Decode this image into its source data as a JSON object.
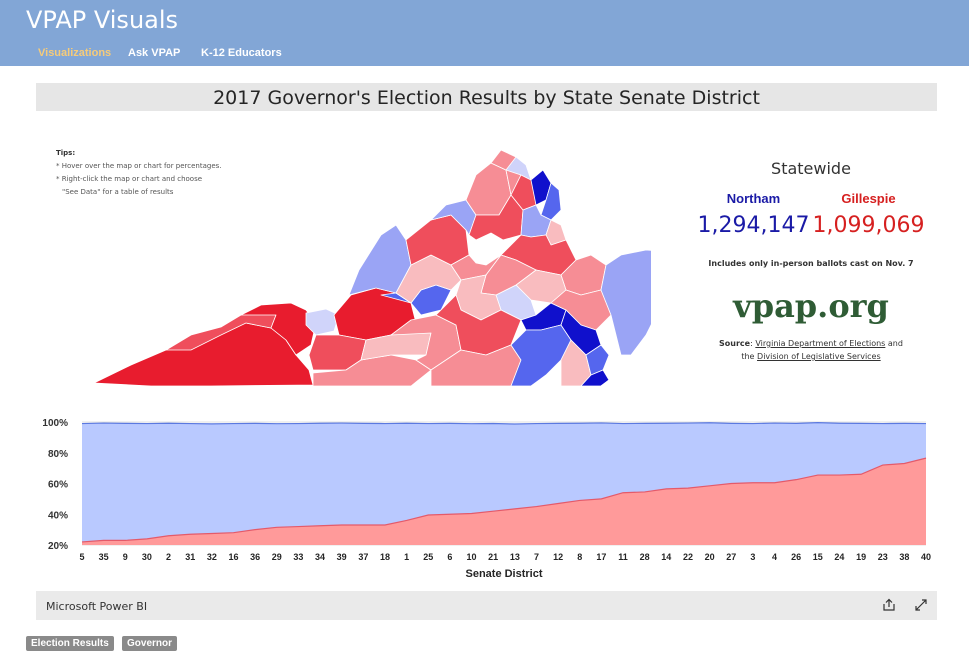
{
  "header": {
    "brand": "VPAP Visuals",
    "nav": [
      "Visualizations",
      "Ask VPAP",
      "K-12 Educators"
    ]
  },
  "report": {
    "title": "2017 Governor's Election Results by State Senate District",
    "tips": {
      "heading": "Tips:",
      "lines": [
        "* Hover over the map or chart for percentages.",
        "* Right-click the map or chart and choose",
        "\"See Data\" for a table of results"
      ]
    },
    "statewide": {
      "title": "Statewide",
      "candidates": [
        {
          "name": "Northam",
          "votes": "1,294,147",
          "color": "#1a1aa6"
        },
        {
          "name": "Gillespie",
          "votes": "1,099,069",
          "color": "#d62020"
        }
      ],
      "note": "Includes only in-person ballots cast on Nov. 7",
      "site": "vpap.org",
      "source_label": "Source",
      "source_link1": "Virginia Department of Elections",
      "source_and": "and",
      "source_the": "the",
      "source_link2": "Division of Legislative Services"
    }
  },
  "chart_data": {
    "type": "area",
    "xlabel": "Senate District",
    "ylabel": "",
    "ylim": [
      20,
      100
    ],
    "ytick_labels": [
      "20%",
      "40%",
      "60%",
      "80%",
      "100%"
    ],
    "legend": "none",
    "grid": true,
    "categories": [
      "5",
      "35",
      "9",
      "30",
      "2",
      "31",
      "32",
      "16",
      "36",
      "29",
      "33",
      "34",
      "39",
      "37",
      "18",
      "1",
      "25",
      "6",
      "10",
      "21",
      "13",
      "7",
      "12",
      "8",
      "17",
      "11",
      "28",
      "14",
      "22",
      "20",
      "27",
      "3",
      "4",
      "26",
      "15",
      "24",
      "19",
      "23",
      "38",
      "40"
    ],
    "series": [
      {
        "values": [
          22,
          23,
          23,
          24,
          26,
          27,
          27.5,
          28,
          30,
          31.5,
          32,
          32.5,
          33,
          33,
          33,
          36,
          39.5,
          40,
          40.5,
          42,
          43.5,
          45,
          47,
          49,
          50,
          54,
          54.5,
          56.5,
          57,
          58.5,
          60,
          60.5,
          60.5,
          62.5,
          65.5,
          65.5,
          66,
          72,
          73,
          76.5
        ],
        "color": "#ff9a9a"
      },
      {
        "values": [
          99,
          99.3,
          99.1,
          99,
          99.2,
          99,
          98.8,
          99,
          99.1,
          98.9,
          99,
          99.2,
          99.3,
          99.1,
          99,
          99.2,
          99,
          99.1,
          98.9,
          99,
          98.7,
          99,
          99.1,
          99.2,
          99.4,
          99,
          99.1,
          99.2,
          99.3,
          99.5,
          99.1,
          99,
          99.3,
          99.1,
          99.6,
          99.2,
          99.1,
          99,
          99.1,
          99
        ],
        "color": "#b9c9ff"
      }
    ]
  },
  "map": {
    "colors": {
      "rep_strong": "#e81c2e",
      "rep": "#ef4e5c",
      "rep_light": "#f68d95",
      "rep_pale": "#f9bcbf",
      "dem_strong": "#1010cc",
      "dem": "#5566ee",
      "dem_light": "#9aa4f5",
      "dem_pale": "#cfd3fa"
    }
  },
  "footer": {
    "label": "Microsoft Power BI",
    "share_icon": "share-icon",
    "expand_icon": "expand-icon"
  },
  "tags": [
    "Election Results",
    "Governor"
  ]
}
